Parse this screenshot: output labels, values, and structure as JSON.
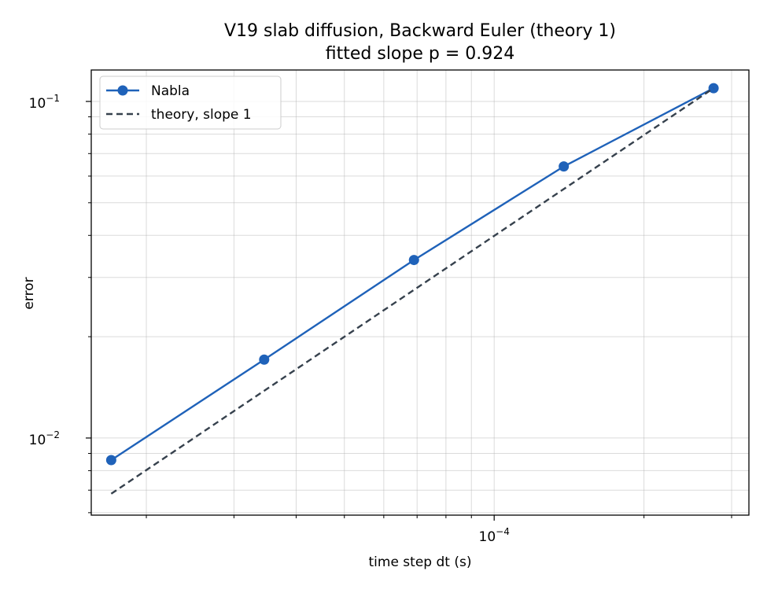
{
  "chart_data": {
    "type": "line",
    "title": "V19 slab diffusion, Backward Euler (theory 1)",
    "subtitle": "fitted slope p = 0.924",
    "xlabel": "time step dt (s)",
    "ylabel": "error",
    "xscale": "log",
    "yscale": "log",
    "xlim": [
      1.55e-05,
      0.000325
    ],
    "ylim": [
      0.0059,
      0.124
    ],
    "grid": true,
    "legend_position": "top-left",
    "x_major_ticks": [
      {
        "value": 0.0001,
        "base": "10",
        "exp": "−4"
      }
    ],
    "y_major_ticks": [
      {
        "value": 0.01,
        "base": "10",
        "exp": "−2"
      },
      {
        "value": 0.1,
        "base": "10",
        "exp": "−1"
      }
    ],
    "x_minor_ticks": [
      2e-05,
      3e-05,
      4e-05,
      5e-05,
      6e-05,
      7e-05,
      8e-05,
      9e-05,
      0.0002,
      0.0003
    ],
    "y_minor_ticks": [
      0.006,
      0.007,
      0.008,
      0.009,
      0.02,
      0.03,
      0.04,
      0.05,
      0.06,
      0.07,
      0.08,
      0.09
    ],
    "series": [
      {
        "name": "Nabla",
        "color": "#1f62b9",
        "line_style": "solid",
        "marker": "circle",
        "x": [
          1.7e-05,
          3.45e-05,
          6.9e-05,
          0.000138,
          0.000276
        ],
        "y": [
          0.0086,
          0.0171,
          0.0338,
          0.0641,
          0.1095
        ]
      },
      {
        "name": "theory, slope 1",
        "color": "#36414d",
        "line_style": "dashed",
        "marker": "none",
        "x": [
          1.7e-05,
          0.000276
        ],
        "y": [
          0.00683,
          0.1095
        ]
      }
    ]
  }
}
